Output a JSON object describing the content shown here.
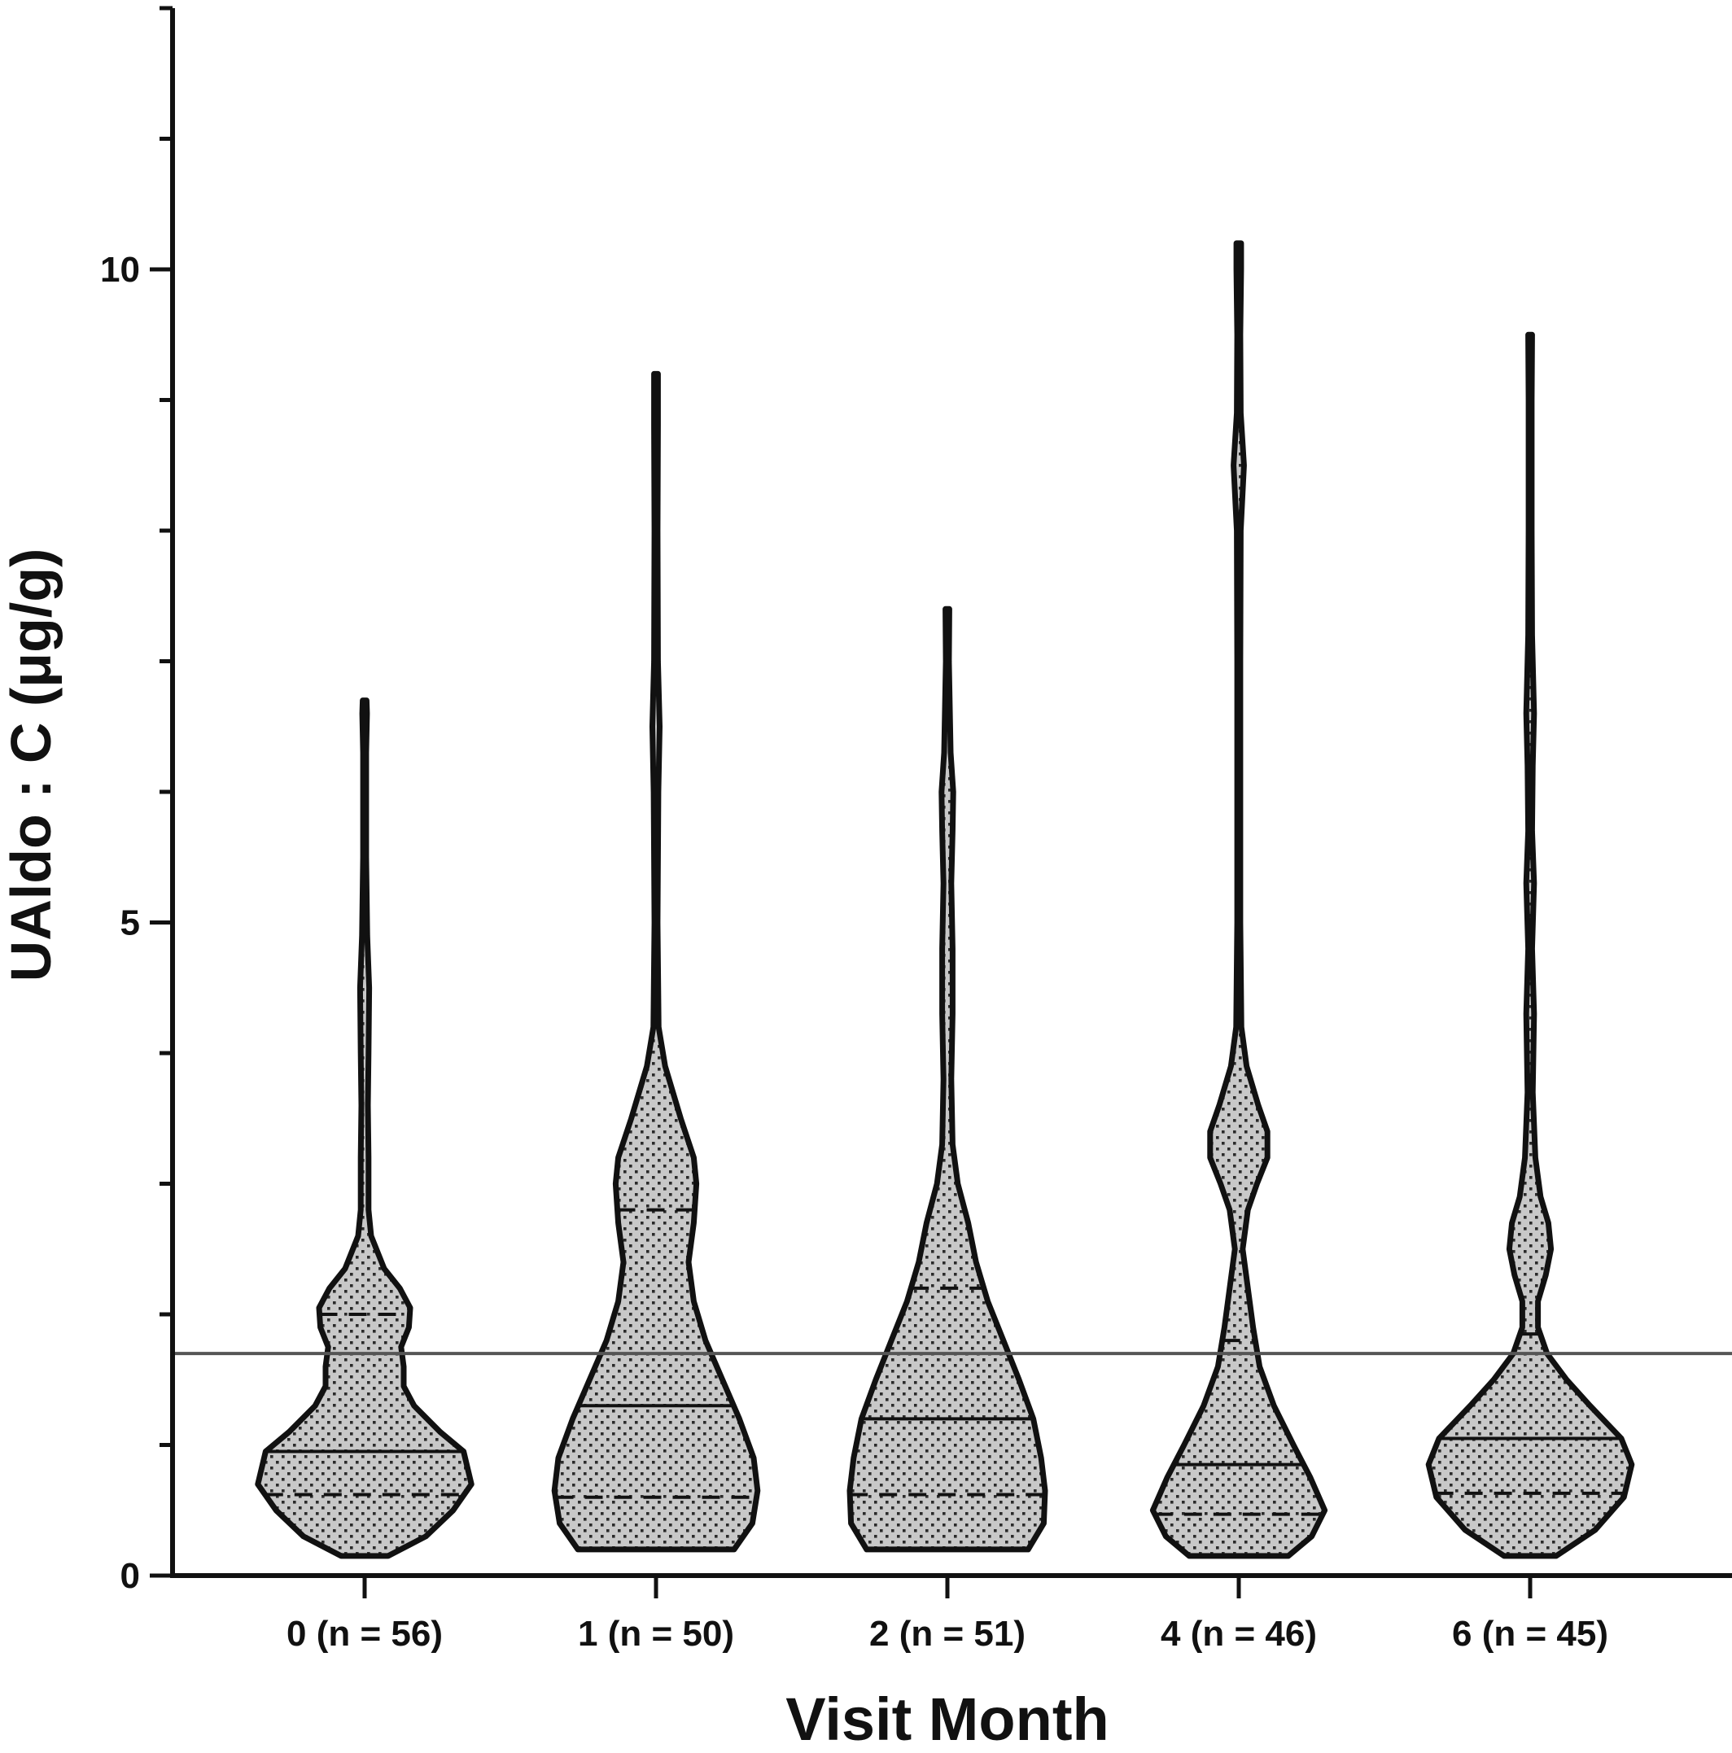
{
  "chart_data": {
    "type": "violin",
    "title": "",
    "xlabel": "Visit Month",
    "ylabel": "UAldo : C (μg/g)",
    "ylim": [
      0,
      12
    ],
    "yticks_major": [
      0,
      5,
      10
    ],
    "yticks_minor": [
      1,
      2,
      3,
      4,
      6,
      7,
      8,
      9,
      11,
      12
    ],
    "reference_line": 1.7,
    "grid": false,
    "legend": "none",
    "fill_color": "#c8c8c8",
    "stroke_color": "#111111",
    "fill_pattern": "dotted",
    "categories": [
      "0 (n = 56)",
      "1 (n = 50)",
      "2 (n = 51)",
      "4 (n = 46)",
      "6 (n = 45)"
    ],
    "violins": [
      {
        "category": "0 (n = 56)",
        "min": 0.15,
        "max": 6.7,
        "median": 0.95,
        "q1": 0.62,
        "q3": 2.0,
        "profile": [
          [
            0.15,
            0.18
          ],
          [
            0.3,
            0.47
          ],
          [
            0.5,
            0.68
          ],
          [
            0.7,
            0.82
          ],
          [
            0.95,
            0.76
          ],
          [
            1.1,
            0.58
          ],
          [
            1.3,
            0.38
          ],
          [
            1.45,
            0.3
          ],
          [
            1.6,
            0.3
          ],
          [
            1.75,
            0.28
          ],
          [
            1.9,
            0.34
          ],
          [
            2.05,
            0.35
          ],
          [
            2.2,
            0.27
          ],
          [
            2.35,
            0.15
          ],
          [
            2.6,
            0.05
          ],
          [
            2.8,
            0.03
          ],
          [
            3.2,
            0.03
          ],
          [
            3.6,
            0.025
          ],
          [
            4.0,
            0.03
          ],
          [
            4.5,
            0.035
          ],
          [
            4.9,
            0.02
          ],
          [
            5.5,
            0.012
          ],
          [
            6.3,
            0.012
          ],
          [
            6.6,
            0.018
          ],
          [
            6.7,
            0.015
          ]
        ]
      },
      {
        "category": "1 (n = 50)",
        "min": 0.2,
        "max": 9.2,
        "median": 1.3,
        "q1": 0.6,
        "q3": 2.8,
        "profile": [
          [
            0.2,
            0.6
          ],
          [
            0.4,
            0.74
          ],
          [
            0.65,
            0.78
          ],
          [
            0.9,
            0.75
          ],
          [
            1.2,
            0.64
          ],
          [
            1.5,
            0.51
          ],
          [
            1.8,
            0.38
          ],
          [
            2.1,
            0.29
          ],
          [
            2.4,
            0.25
          ],
          [
            2.7,
            0.29
          ],
          [
            3.0,
            0.31
          ],
          [
            3.2,
            0.29
          ],
          [
            3.5,
            0.19
          ],
          [
            3.9,
            0.07
          ],
          [
            4.2,
            0.02
          ],
          [
            5.0,
            0.012
          ],
          [
            6.0,
            0.018
          ],
          [
            6.5,
            0.028
          ],
          [
            7.0,
            0.015
          ],
          [
            8.0,
            0.012
          ],
          [
            8.8,
            0.015
          ],
          [
            9.2,
            0.015
          ]
        ]
      },
      {
        "category": "2 (n = 51)",
        "min": 0.2,
        "max": 7.4,
        "median": 1.2,
        "q1": 0.62,
        "q3": 2.2,
        "profile": [
          [
            0.2,
            0.62
          ],
          [
            0.4,
            0.74
          ],
          [
            0.65,
            0.75
          ],
          [
            0.9,
            0.72
          ],
          [
            1.2,
            0.66
          ],
          [
            1.5,
            0.55
          ],
          [
            1.8,
            0.43
          ],
          [
            2.1,
            0.31
          ],
          [
            2.4,
            0.22
          ],
          [
            2.7,
            0.16
          ],
          [
            3.0,
            0.08
          ],
          [
            3.3,
            0.04
          ],
          [
            3.8,
            0.03
          ],
          [
            4.3,
            0.04
          ],
          [
            4.8,
            0.04
          ],
          [
            5.3,
            0.03
          ],
          [
            5.7,
            0.04
          ],
          [
            6.0,
            0.045
          ],
          [
            6.3,
            0.025
          ],
          [
            7.0,
            0.012
          ],
          [
            7.4,
            0.015
          ]
        ]
      },
      {
        "category": "4 (n = 46)",
        "min": 0.15,
        "max": 10.2,
        "median": 0.85,
        "q1": 0.47,
        "q3": 1.8,
        "profile": [
          [
            0.15,
            0.38
          ],
          [
            0.3,
            0.56
          ],
          [
            0.5,
            0.66
          ],
          [
            0.75,
            0.55
          ],
          [
            1.0,
            0.42
          ],
          [
            1.3,
            0.27
          ],
          [
            1.6,
            0.16
          ],
          [
            1.9,
            0.11
          ],
          [
            2.2,
            0.07
          ],
          [
            2.5,
            0.03
          ],
          [
            2.8,
            0.07
          ],
          [
            3.0,
            0.14
          ],
          [
            3.2,
            0.22
          ],
          [
            3.4,
            0.22
          ],
          [
            3.6,
            0.15
          ],
          [
            3.9,
            0.06
          ],
          [
            4.2,
            0.02
          ],
          [
            5.0,
            0.012
          ],
          [
            6.0,
            0.012
          ],
          [
            7.0,
            0.012
          ],
          [
            8.0,
            0.015
          ],
          [
            8.5,
            0.04
          ],
          [
            8.9,
            0.015
          ],
          [
            9.5,
            0.012
          ],
          [
            10.0,
            0.018
          ],
          [
            10.2,
            0.018
          ]
        ]
      },
      {
        "category": "6 (n = 45)",
        "min": 0.15,
        "max": 9.5,
        "median": 1.05,
        "q1": 0.63,
        "q3": 1.85,
        "profile": [
          [
            0.15,
            0.2
          ],
          [
            0.35,
            0.5
          ],
          [
            0.6,
            0.72
          ],
          [
            0.85,
            0.78
          ],
          [
            1.05,
            0.7
          ],
          [
            1.3,
            0.46
          ],
          [
            1.5,
            0.28
          ],
          [
            1.7,
            0.13
          ],
          [
            1.9,
            0.06
          ],
          [
            2.1,
            0.06
          ],
          [
            2.3,
            0.12
          ],
          [
            2.5,
            0.16
          ],
          [
            2.7,
            0.14
          ],
          [
            2.9,
            0.08
          ],
          [
            3.2,
            0.04
          ],
          [
            3.7,
            0.02
          ],
          [
            4.3,
            0.03
          ],
          [
            4.8,
            0.015
          ],
          [
            5.3,
            0.03
          ],
          [
            5.7,
            0.015
          ],
          [
            6.2,
            0.02
          ],
          [
            6.6,
            0.03
          ],
          [
            7.2,
            0.015
          ],
          [
            8.0,
            0.012
          ],
          [
            9.0,
            0.012
          ],
          [
            9.5,
            0.015
          ]
        ]
      }
    ]
  }
}
